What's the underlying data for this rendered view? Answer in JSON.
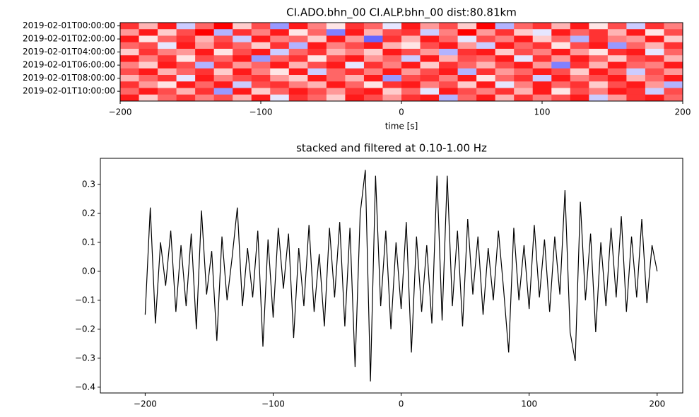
{
  "chart_data": [
    {
      "type": "heatmap",
      "title": "CI.ADO.bhn_00 CI.ALP.bhn_00  dist:80.81km",
      "xlabel": "time [s]",
      "rows": [
        "2019-02-01T00:00:00",
        null,
        "2019-02-01T02:00:00",
        null,
        "2019-02-01T04:00:00",
        null,
        "2019-02-01T06:00:00",
        null,
        "2019-02-01T08:00:00",
        null,
        "2019-02-01T10:00:00",
        null
      ],
      "xlim": [
        -200,
        200
      ],
      "xticks": [
        {
          "value": -200,
          "label": "−200"
        },
        {
          "value": -100,
          "label": "−100"
        },
        0,
        100,
        200
      ],
      "colormap": [
        "#0000ff",
        "#ffffff",
        "#ff0000"
      ],
      "clim": [
        -1,
        1
      ],
      "values": [
        [
          0.8,
          0.3,
          0.9,
          -0.2,
          0.6,
          1.0,
          0.2,
          0.7,
          -0.4,
          0.9,
          0.5,
          0.1,
          0.8,
          0.6,
          -0.1,
          0.9,
          0.4,
          0.7,
          0.2,
          1.0,
          -0.3,
          0.6,
          0.8,
          0.3,
          0.9,
          0.1,
          0.7,
          -0.2,
          0.8,
          0.5
        ],
        [
          0.4,
          0.9,
          0.2,
          0.7,
          1.0,
          -0.3,
          0.8,
          0.5,
          0.9,
          0.1,
          0.6,
          -0.5,
          0.9,
          0.3,
          0.7,
          0.8,
          -0.2,
          0.5,
          1.0,
          0.4,
          0.8,
          0.2,
          -0.1,
          0.9,
          0.6,
          0.8,
          0.3,
          0.9,
          0.1,
          0.7
        ],
        [
          0.9,
          0.1,
          0.6,
          0.8,
          0.3,
          0.7,
          -0.2,
          0.9,
          0.5,
          0.6,
          0.2,
          0.9,
          0.4,
          -0.6,
          0.8,
          0.3,
          0.9,
          0.6,
          -0.1,
          0.7,
          0.5,
          0.9,
          0.2,
          0.6,
          -0.3,
          0.8,
          0.5,
          0.4,
          0.9,
          0.2
        ],
        [
          0.6,
          0.7,
          -0.1,
          0.9,
          0.4,
          0.8,
          0.6,
          0.2,
          0.8,
          -0.3,
          0.9,
          0.5,
          0.7,
          0.9,
          0.3,
          0.1,
          0.7,
          0.9,
          0.4,
          -0.2,
          0.9,
          0.6,
          0.8,
          0.1,
          0.7,
          0.9,
          -0.4,
          0.6,
          0.3,
          0.8
        ],
        [
          0.2,
          0.8,
          0.5,
          0.4,
          0.9,
          0.1,
          0.7,
          0.9,
          -0.2,
          0.6,
          0.8,
          0.3,
          0.5,
          0.2,
          0.9,
          0.7,
          0.4,
          -0.3,
          0.8,
          0.9,
          0.2,
          0.7,
          0.5,
          0.9,
          0.4,
          0.1,
          0.8,
          0.9,
          -0.1,
          0.6
        ],
        [
          0.9,
          0.5,
          0.8,
          0.1,
          0.7,
          0.6,
          0.9,
          -0.4,
          0.6,
          0.8,
          0.1,
          0.7,
          0.9,
          0.4,
          0.6,
          -0.2,
          0.9,
          0.3,
          0.7,
          0.6,
          0.9,
          -0.1,
          0.8,
          0.4,
          0.9,
          0.6,
          0.2,
          0.7,
          0.8,
          0.3
        ],
        [
          0.5,
          0.2,
          0.9,
          0.7,
          -0.3,
          0.8,
          0.4,
          0.6,
          0.9,
          0.3,
          0.7,
          0.9,
          -0.1,
          0.8,
          0.5,
          0.9,
          0.2,
          0.8,
          0.6,
          0.3,
          0.7,
          0.9,
          0.4,
          -0.5,
          0.8,
          0.3,
          0.9,
          0.6,
          0.5,
          0.9
        ],
        [
          0.7,
          0.9,
          0.3,
          0.6,
          0.8,
          0.2,
          0.9,
          0.5,
          0.1,
          0.9,
          -0.2,
          0.6,
          0.8,
          0.5,
          0.9,
          0.4,
          0.7,
          0.9,
          -0.3,
          0.8,
          0.4,
          0.6,
          0.9,
          0.7,
          0.2,
          0.9,
          0.6,
          -0.2,
          0.7,
          0.4
        ],
        [
          0.3,
          0.6,
          0.8,
          -0.1,
          0.9,
          0.5,
          0.7,
          0.8,
          0.4,
          0.2,
          0.9,
          0.6,
          0.3,
          0.9,
          -0.4,
          0.7,
          0.8,
          0.5,
          0.9,
          0.1,
          0.6,
          0.8,
          -0.2,
          0.9,
          0.5,
          0.7,
          0.9,
          0.3,
          0.6,
          0.9
        ],
        [
          0.8,
          0.4,
          0.1,
          0.9,
          0.6,
          0.9,
          -0.2,
          0.7,
          0.8,
          0.5,
          0.3,
          0.9,
          0.6,
          0.1,
          0.8,
          0.9,
          0.5,
          0.7,
          0.2,
          0.9,
          -0.1,
          0.5,
          0.9,
          0.6,
          0.8,
          0.2,
          0.7,
          0.9,
          0.4,
          -0.3
        ],
        [
          0.6,
          0.9,
          0.7,
          0.3,
          0.8,
          -0.4,
          0.9,
          0.2,
          0.6,
          0.9,
          0.7,
          0.4,
          0.8,
          0.9,
          0.2,
          0.6,
          -0.1,
          0.9,
          0.7,
          0.5,
          0.8,
          0.3,
          0.9,
          0.1,
          0.7,
          0.5,
          0.9,
          0.8,
          -0.2,
          0.7
        ],
        [
          0.9,
          0.2,
          0.6,
          0.8,
          0.5,
          0.7,
          0.3,
          0.9,
          -0.1,
          0.8,
          0.6,
          0.2,
          0.9,
          0.7,
          0.4,
          0.8,
          0.9,
          -0.3,
          0.6,
          0.9,
          0.3,
          0.8,
          0.5,
          0.7,
          0.9,
          -0.2,
          0.4,
          0.8,
          0.9,
          0.6
        ]
      ]
    },
    {
      "type": "line",
      "title": "stacked and filtered at 0.10-1.00 Hz",
      "color": "#000000",
      "xlim": [
        -235,
        220
      ],
      "ylim": [
        -0.42,
        0.39
      ],
      "xticks": [
        {
          "value": -200,
          "label": "−200"
        },
        {
          "value": -100,
          "label": "−100"
        },
        0,
        100,
        200
      ],
      "yticks": [
        0.3,
        0.2,
        0.1,
        {
          "value": 0,
          "label": "0.0"
        },
        {
          "value": -0.1,
          "label": "−0.1"
        },
        {
          "value": -0.2,
          "label": "−0.2"
        },
        {
          "value": -0.3,
          "label": "−0.3"
        },
        {
          "value": -0.4,
          "label": "−0.4"
        }
      ],
      "x": [
        -200,
        -196,
        -192,
        -188,
        -184,
        -180,
        -176,
        -172,
        -168,
        -164,
        -160,
        -156,
        -152,
        -148,
        -144,
        -140,
        -136,
        -132,
        -128,
        -124,
        -120,
        -116,
        -112,
        -108,
        -104,
        -100,
        -96,
        -92,
        -88,
        -84,
        -80,
        -76,
        -72,
        -68,
        -64,
        -60,
        -56,
        -52,
        -48,
        -44,
        -40,
        -36,
        -32,
        -28,
        -24,
        -20,
        -16,
        -12,
        -8,
        -4,
        0,
        4,
        8,
        12,
        16,
        20,
        24,
        28,
        32,
        36,
        40,
        44,
        48,
        52,
        56,
        60,
        64,
        68,
        72,
        76,
        80,
        84,
        88,
        92,
        96,
        100,
        104,
        108,
        112,
        116,
        120,
        124,
        128,
        132,
        136,
        140,
        144,
        148,
        152,
        156,
        160,
        164,
        168,
        172,
        176,
        180,
        184,
        188,
        192,
        196,
        200
      ],
      "values": [
        -0.15,
        0.22,
        -0.18,
        0.1,
        -0.05,
        0.14,
        -0.14,
        0.09,
        -0.12,
        0.13,
        -0.2,
        0.21,
        -0.08,
        0.07,
        -0.24,
        0.12,
        -0.1,
        0.05,
        0.22,
        -0.12,
        0.08,
        -0.09,
        0.14,
        -0.26,
        0.11,
        -0.16,
        0.15,
        -0.06,
        0.13,
        -0.23,
        0.08,
        -0.12,
        0.16,
        -0.14,
        0.06,
        -0.19,
        0.15,
        -0.09,
        0.17,
        -0.19,
        0.15,
        -0.33,
        0.2,
        0.35,
        -0.38,
        0.33,
        -0.12,
        0.14,
        -0.2,
        0.1,
        -0.13,
        0.17,
        -0.28,
        0.12,
        -0.14,
        0.09,
        -0.18,
        0.33,
        -0.17,
        0.33,
        -0.12,
        0.14,
        -0.19,
        0.18,
        -0.08,
        0.12,
        -0.15,
        0.08,
        -0.1,
        0.14,
        -0.06,
        -0.28,
        0.15,
        -0.1,
        0.09,
        -0.13,
        0.16,
        -0.09,
        0.11,
        -0.14,
        0.12,
        -0.08,
        0.28,
        -0.21,
        -0.31,
        0.24,
        -0.1,
        0.13,
        -0.21,
        0.1,
        -0.12,
        0.15,
        -0.09,
        0.19,
        -0.14,
        0.12,
        -0.09,
        0.18,
        -0.11,
        0.09,
        0.0
      ]
    }
  ]
}
